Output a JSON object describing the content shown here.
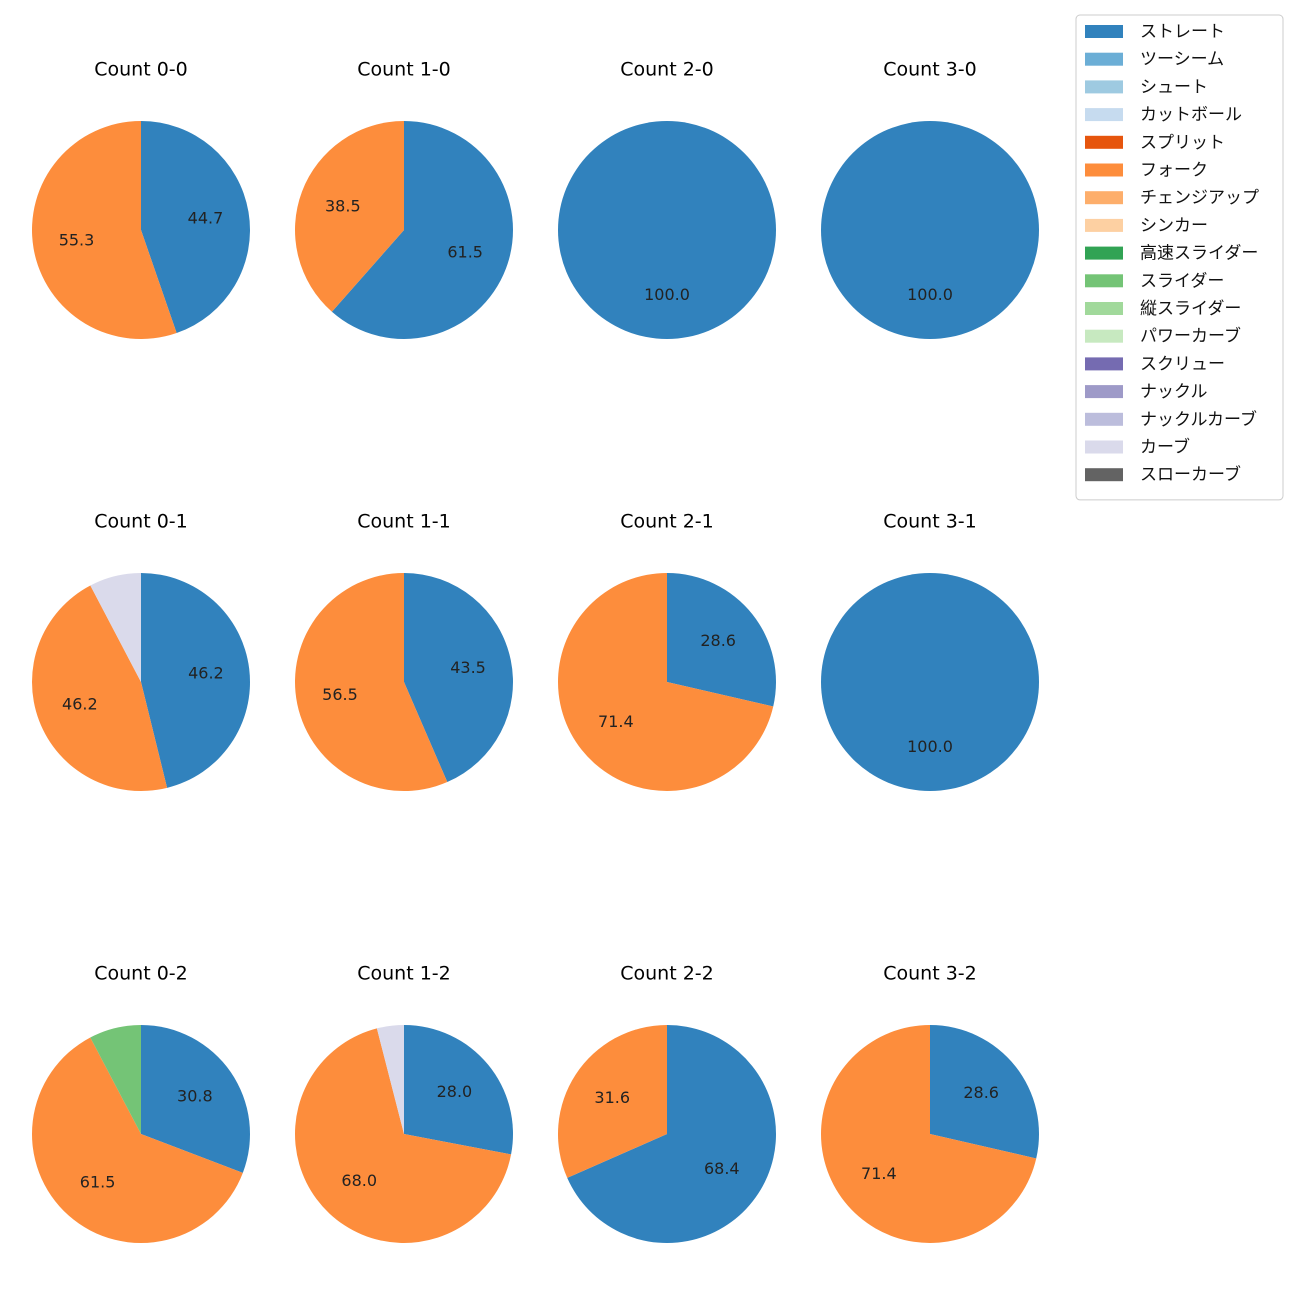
{
  "chart_data": {
    "type": "pie",
    "legend_position": "top-right",
    "categories": [
      {
        "name": "ストレート",
        "color": "#3182bd"
      },
      {
        "name": "ツーシーム",
        "color": "#6baed6"
      },
      {
        "name": "シュート",
        "color": "#9ecae1"
      },
      {
        "name": "カットボール",
        "color": "#c6dbef"
      },
      {
        "name": "スプリット",
        "color": "#e6550d"
      },
      {
        "name": "フォーク",
        "color": "#fd8d3c"
      },
      {
        "name": "チェンジアップ",
        "color": "#fdae6b"
      },
      {
        "name": "シンカー",
        "color": "#fdd0a2"
      },
      {
        "name": "高速スライダー",
        "color": "#31a354"
      },
      {
        "name": "スライダー",
        "color": "#74c476"
      },
      {
        "name": "縦スライダー",
        "color": "#a1d99b"
      },
      {
        "name": "パワーカーブ",
        "color": "#c7e9c0"
      },
      {
        "name": "スクリュー",
        "color": "#756bb1"
      },
      {
        "name": "ナックル",
        "color": "#9e9ac8"
      },
      {
        "name": "ナックルカーブ",
        "color": "#bcbddc"
      },
      {
        "name": "カーブ",
        "color": "#dadaeb"
      },
      {
        "name": "スローカーブ",
        "color": "#636363"
      }
    ],
    "pies": [
      {
        "title": "Count 0-0",
        "slices": [
          {
            "pitch": "ストレート",
            "value": 44.7,
            "label": "44.7"
          },
          {
            "pitch": "フォーク",
            "value": 55.3,
            "label": "55.3"
          }
        ]
      },
      {
        "title": "Count 1-0",
        "slices": [
          {
            "pitch": "ストレート",
            "value": 61.5,
            "label": "61.5"
          },
          {
            "pitch": "フォーク",
            "value": 38.5,
            "label": "38.5"
          }
        ]
      },
      {
        "title": "Count 2-0",
        "slices": [
          {
            "pitch": "ストレート",
            "value": 100.0,
            "label": "100.0"
          }
        ]
      },
      {
        "title": "Count 3-0",
        "slices": [
          {
            "pitch": "ストレート",
            "value": 100.0,
            "label": "100.0"
          }
        ]
      },
      {
        "title": "Count 0-1",
        "slices": [
          {
            "pitch": "ストレート",
            "value": 46.2,
            "label": "46.2"
          },
          {
            "pitch": "フォーク",
            "value": 46.2,
            "label": "46.2"
          },
          {
            "pitch": "カーブ",
            "value": 7.7,
            "label": ""
          }
        ]
      },
      {
        "title": "Count 1-1",
        "slices": [
          {
            "pitch": "ストレート",
            "value": 43.5,
            "label": "43.5"
          },
          {
            "pitch": "フォーク",
            "value": 56.5,
            "label": "56.5"
          }
        ]
      },
      {
        "title": "Count 2-1",
        "slices": [
          {
            "pitch": "ストレート",
            "value": 28.6,
            "label": "28.6"
          },
          {
            "pitch": "フォーク",
            "value": 71.4,
            "label": "71.4"
          }
        ]
      },
      {
        "title": "Count 3-1",
        "slices": [
          {
            "pitch": "ストレート",
            "value": 100.0,
            "label": "100.0"
          }
        ]
      },
      {
        "title": "Count 0-2",
        "slices": [
          {
            "pitch": "ストレート",
            "value": 30.8,
            "label": "30.8"
          },
          {
            "pitch": "フォーク",
            "value": 61.5,
            "label": "61.5"
          },
          {
            "pitch": "スライダー",
            "value": 7.7,
            "label": ""
          }
        ]
      },
      {
        "title": "Count 1-2",
        "slices": [
          {
            "pitch": "ストレート",
            "value": 28.0,
            "label": "28.0"
          },
          {
            "pitch": "フォーク",
            "value": 68.0,
            "label": "68.0"
          },
          {
            "pitch": "カーブ",
            "value": 4.0,
            "label": ""
          }
        ]
      },
      {
        "title": "Count 2-2",
        "slices": [
          {
            "pitch": "ストレート",
            "value": 68.4,
            "label": "68.4"
          },
          {
            "pitch": "フォーク",
            "value": 31.6,
            "label": "31.6"
          }
        ]
      },
      {
        "title": "Count 3-2",
        "slices": [
          {
            "pitch": "ストレート",
            "value": 28.6,
            "label": "28.6"
          },
          {
            "pitch": "フォーク",
            "value": 71.4,
            "label": "71.4"
          }
        ]
      }
    ]
  }
}
